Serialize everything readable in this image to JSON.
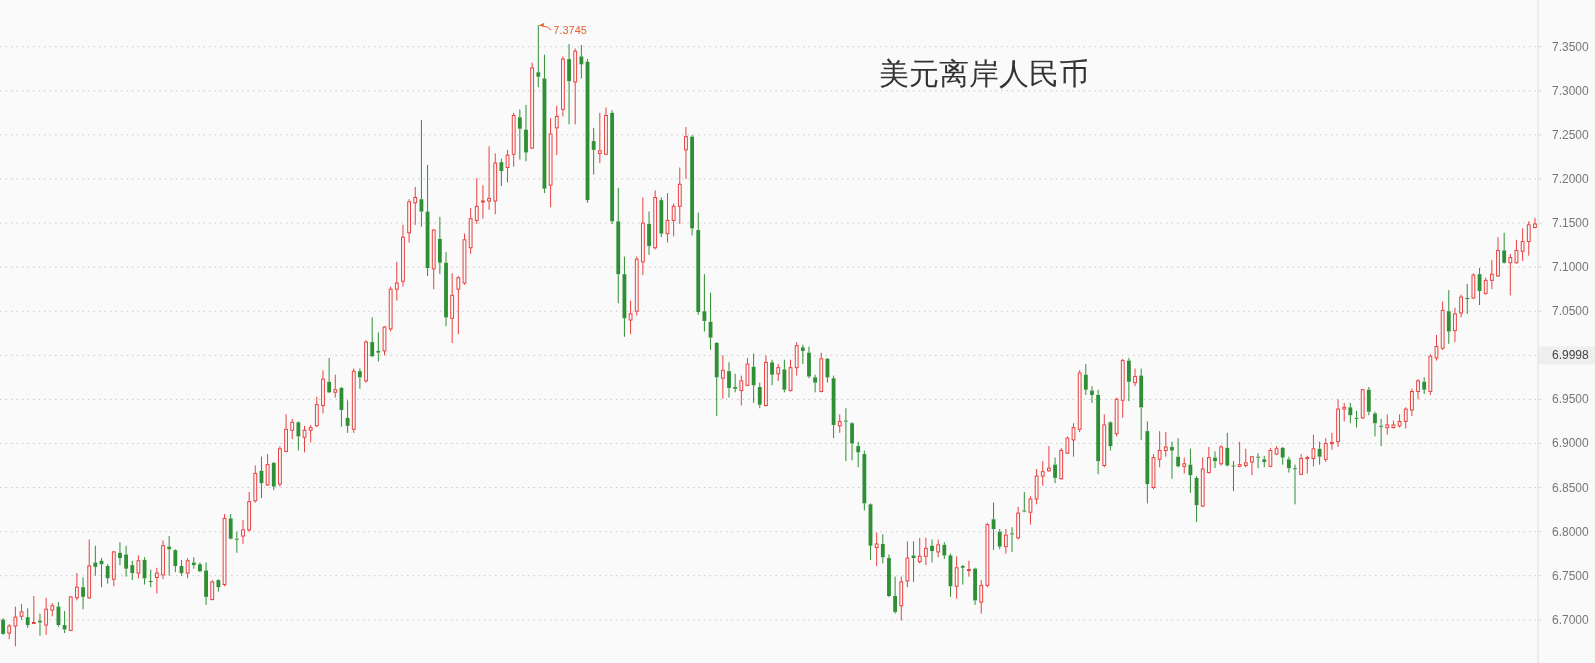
{
  "chart_data": {
    "type": "candlestick",
    "title": "美元离岸人民币",
    "categories": [
      null,
      null,
      null,
      null,
      null,
      null,
      null,
      null,
      null,
      null,
      null,
      null,
      null,
      null,
      null,
      null,
      null,
      null,
      null,
      null,
      null,
      null,
      null,
      null,
      null,
      null,
      null,
      null,
      null,
      null,
      null,
      null,
      null,
      null,
      null,
      null,
      null,
      null,
      null,
      null,
      null,
      null,
      null,
      null,
      null,
      null,
      null,
      null,
      null,
      null,
      null,
      null,
      null,
      null,
      null,
      null,
      null,
      null,
      null,
      null,
      null,
      null,
      null,
      null,
      null,
      null,
      null,
      null,
      null,
      null,
      null,
      null,
      null,
      null,
      null,
      null,
      null,
      null,
      null,
      null,
      null,
      null,
      null,
      null,
      null,
      null,
      null,
      null,
      null,
      null,
      null,
      null,
      null,
      null,
      null,
      null,
      null,
      null,
      null,
      null,
      null,
      null,
      null,
      null,
      null,
      null,
      null,
      null,
      null,
      null,
      null,
      null,
      null,
      null,
      null,
      null,
      null,
      null,
      null,
      null,
      null,
      null,
      null,
      null,
      null,
      null,
      null,
      null,
      null,
      null,
      null,
      null,
      null,
      null,
      null,
      null,
      null,
      null,
      null,
      null,
      null,
      null,
      null,
      null,
      null,
      null,
      null,
      null,
      null,
      null,
      null,
      null,
      null,
      null,
      null,
      null,
      null,
      null,
      null,
      null,
      null,
      null,
      null,
      null,
      null,
      null,
      null,
      null,
      null,
      null,
      null,
      null,
      null,
      null,
      null,
      null,
      null,
      null,
      null,
      null,
      null,
      null,
      null,
      null,
      null,
      null,
      null,
      null,
      null,
      null,
      null,
      null,
      null,
      null,
      null,
      null,
      null,
      null,
      null,
      null,
      null,
      null,
      null,
      null,
      null,
      null,
      null,
      null,
      null,
      null,
      null,
      null,
      null,
      null,
      null,
      null,
      null,
      null,
      null,
      null,
      null,
      null,
      null,
      null,
      null,
      null,
      null,
      null,
      null,
      null,
      null,
      null,
      null,
      null,
      null,
      null,
      null,
      null,
      null,
      null,
      null,
      null,
      null,
      null,
      null,
      null,
      null,
      null,
      null,
      null
    ],
    "ohlc": [
      [
        6.7,
        6.702,
        6.683,
        6.684
      ],
      [
        6.685,
        6.695,
        6.678,
        6.693
      ],
      [
        6.693,
        6.715,
        6.67,
        6.703
      ],
      [
        6.704,
        6.718,
        6.7,
        6.709
      ],
      [
        6.703,
        6.713,
        6.691,
        6.694
      ],
      [
        6.696,
        6.727,
        6.695,
        6.697
      ],
      [
        6.699,
        6.707,
        6.682,
        6.697
      ],
      [
        6.694,
        6.725,
        6.683,
        6.712
      ],
      [
        6.711,
        6.719,
        6.704,
        6.716
      ],
      [
        6.715,
        6.72,
        6.692,
        6.694
      ],
      [
        6.694,
        6.71,
        6.685,
        6.689
      ],
      [
        6.688,
        6.727,
        6.687,
        6.726
      ],
      [
        6.725,
        6.753,
        6.722,
        6.737
      ],
      [
        6.737,
        6.748,
        6.712,
        6.726
      ],
      [
        6.725,
        6.791,
        6.724,
        6.761
      ],
      [
        6.765,
        6.784,
        6.75,
        6.76
      ],
      [
        6.767,
        6.77,
        6.737,
        6.763
      ],
      [
        6.761,
        6.763,
        6.741,
        6.747
      ],
      [
        6.746,
        6.778,
        6.738,
        6.777
      ],
      [
        6.776,
        6.788,
        6.762,
        6.77
      ],
      [
        6.774,
        6.784,
        6.749,
        6.758
      ],
      [
        6.762,
        6.767,
        6.745,
        6.753
      ],
      [
        6.753,
        6.773,
        6.747,
        6.767
      ],
      [
        6.768,
        6.771,
        6.74,
        6.747
      ],
      [
        6.744,
        6.757,
        6.737,
        6.743
      ],
      [
        6.748,
        6.759,
        6.73,
        6.753
      ],
      [
        6.751,
        6.79,
        6.746,
        6.784
      ],
      [
        6.783,
        6.795,
        6.75,
        6.78
      ],
      [
        6.779,
        6.78,
        6.754,
        6.761
      ],
      [
        6.761,
        6.768,
        6.75,
        6.753
      ],
      [
        6.753,
        6.77,
        6.747,
        6.767
      ],
      [
        6.765,
        6.771,
        6.758,
        6.762
      ],
      [
        6.763,
        6.765,
        6.754,
        6.755
      ],
      [
        6.756,
        6.765,
        6.717,
        6.726
      ],
      [
        6.723,
        6.745,
        6.722,
        6.743
      ],
      [
        6.745,
        6.746,
        6.732,
        6.737
      ],
      [
        6.74,
        6.82,
        6.738,
        6.815
      ],
      [
        6.815,
        6.82,
        6.791,
        6.792
      ],
      [
        6.792,
        6.8,
        6.776,
        6.791
      ],
      [
        6.795,
        6.813,
        6.786,
        6.802
      ],
      [
        6.802,
        6.845,
        6.8,
        6.834
      ],
      [
        6.835,
        6.875,
        6.833,
        6.866
      ],
      [
        6.869,
        6.885,
        6.838,
        6.855
      ],
      [
        6.853,
        6.888,
        6.852,
        6.876
      ],
      [
        6.878,
        6.879,
        6.847,
        6.851
      ],
      [
        6.854,
        6.897,
        6.851,
        6.894
      ],
      [
        6.891,
        6.933,
        6.89,
        6.916
      ],
      [
        6.915,
        6.928,
        6.905,
        6.924
      ],
      [
        6.924,
        6.925,
        6.892,
        6.908
      ],
      [
        6.907,
        6.92,
        6.89,
        6.915
      ],
      [
        6.915,
        6.921,
        6.901,
        6.918
      ],
      [
        6.92,
        6.953,
        6.919,
        6.944
      ],
      [
        6.943,
        6.983,
        6.934,
        6.973
      ],
      [
        6.97,
        6.997,
        6.957,
        6.958
      ],
      [
        6.958,
        6.978,
        6.952,
        6.961
      ],
      [
        6.963,
        6.964,
        6.919,
        6.938
      ],
      [
        6.929,
        6.949,
        6.912,
        6.92
      ],
      [
        6.916,
        6.985,
        6.912,
        6.982
      ],
      [
        6.982,
        6.985,
        6.962,
        6.975
      ],
      [
        6.971,
        7.017,
        6.969,
        7.015
      ],
      [
        7.015,
        7.043,
        6.998,
        6.999
      ],
      [
        7.005,
        7.026,
        6.993,
        7.003
      ],
      [
        7.005,
        7.033,
        7.0,
        7.032
      ],
      [
        7.03,
        7.078,
        7.027,
        7.075
      ],
      [
        7.075,
        7.106,
        7.062,
        7.082
      ],
      [
        7.084,
        7.148,
        7.078,
        7.134
      ],
      [
        7.139,
        7.177,
        7.128,
        7.174
      ],
      [
        7.173,
        7.191,
        7.148,
        7.179
      ],
      [
        7.177,
        7.267,
        7.146,
        7.163
      ],
      [
        7.163,
        7.216,
        7.09,
        7.099
      ],
      [
        7.098,
        7.143,
        7.075,
        7.142
      ],
      [
        7.132,
        7.157,
        7.092,
        7.105
      ],
      [
        7.105,
        7.117,
        7.033,
        7.043
      ],
      [
        7.042,
        7.093,
        7.014,
        7.068
      ],
      [
        7.075,
        7.09,
        7.024,
        7.088
      ],
      [
        7.082,
        7.138,
        7.08,
        7.131
      ],
      [
        7.122,
        7.167,
        7.115,
        7.155
      ],
      [
        7.153,
        7.201,
        7.149,
        7.169
      ],
      [
        7.174,
        7.193,
        7.155,
        7.175
      ],
      [
        7.175,
        7.237,
        7.165,
        7.178
      ],
      [
        7.175,
        7.229,
        7.16,
        7.218
      ],
      [
        7.219,
        7.223,
        7.192,
        7.209
      ],
      [
        7.213,
        7.233,
        7.196,
        7.227
      ],
      [
        7.228,
        7.275,
        7.214,
        7.272
      ],
      [
        7.27,
        7.279,
        7.222,
        7.257
      ],
      [
        7.256,
        7.284,
        7.22,
        7.23
      ],
      [
        7.235,
        7.332,
        7.234,
        7.326
      ],
      [
        7.321,
        7.3745,
        7.304,
        7.316
      ],
      [
        7.314,
        7.341,
        7.184,
        7.189
      ],
      [
        7.193,
        7.269,
        7.168,
        7.251
      ],
      [
        7.258,
        7.283,
        7.227,
        7.271
      ],
      [
        7.279,
        7.339,
        7.271,
        7.336
      ],
      [
        7.336,
        7.353,
        7.262,
        7.311
      ],
      [
        7.31,
        7.348,
        7.262,
        7.345
      ],
      [
        7.339,
        7.352,
        7.314,
        7.33
      ],
      [
        7.333,
        7.336,
        7.173,
        7.176
      ],
      [
        7.243,
        7.258,
        7.205,
        7.233
      ],
      [
        7.229,
        7.275,
        7.218,
        7.232
      ],
      [
        7.228,
        7.281,
        7.227,
        7.272
      ],
      [
        7.275,
        7.278,
        7.149,
        7.152
      ],
      [
        7.152,
        7.19,
        7.059,
        7.092
      ],
      [
        7.092,
        7.112,
        7.021,
        7.042
      ],
      [
        7.04,
        7.062,
        7.024,
        7.047
      ],
      [
        7.05,
        7.112,
        7.045,
        7.109
      ],
      [
        7.106,
        7.179,
        7.091,
        7.15
      ],
      [
        7.149,
        7.163,
        7.114,
        7.124
      ],
      [
        7.122,
        7.187,
        7.12,
        7.179
      ],
      [
        7.176,
        7.179,
        7.134,
        7.138
      ],
      [
        7.138,
        7.184,
        7.128,
        7.153
      ],
      [
        7.153,
        7.172,
        7.135,
        7.169
      ],
      [
        7.169,
        7.213,
        7.149,
        7.194
      ],
      [
        7.233,
        7.259,
        7.2,
        7.248
      ],
      [
        7.248,
        7.25,
        7.136,
        7.144
      ],
      [
        7.142,
        7.162,
        7.046,
        7.049
      ],
      [
        7.05,
        7.092,
        7.027,
        7.039
      ],
      [
        7.038,
        7.071,
        7.006,
        7.02
      ],
      [
        7.014,
        7.015,
        6.931,
        6.975
      ],
      [
        6.974,
        7.0,
        6.951,
        6.983
      ],
      [
        6.982,
        6.992,
        6.952,
        6.963
      ],
      [
        6.964,
        6.979,
        6.958,
        6.962
      ],
      [
        6.96,
        6.977,
        6.943,
        6.971
      ],
      [
        6.966,
        6.997,
        6.965,
        6.99
      ],
      [
        6.987,
        7.002,
        6.946,
        6.966
      ],
      [
        6.964,
        6.969,
        6.94,
        6.944
      ],
      [
        6.943,
        7.0,
        6.942,
        6.992
      ],
      [
        6.992,
        6.995,
        6.966,
        6.978
      ],
      [
        6.979,
        6.99,
        6.971,
        6.986
      ],
      [
        6.984,
        6.995,
        6.958,
        6.961
      ],
      [
        6.96,
        6.995,
        6.959,
        6.986
      ],
      [
        6.986,
        7.015,
        6.977,
        7.011
      ],
      [
        7.009,
        7.012,
        6.99,
        7.005
      ],
      [
        7.003,
        7.01,
        6.974,
        6.976
      ],
      [
        6.975,
        6.978,
        6.958,
        6.969
      ],
      [
        6.959,
        7.003,
        6.958,
        6.996
      ],
      [
        6.996,
        6.997,
        6.969,
        6.975
      ],
      [
        6.974,
        6.977,
        6.906,
        6.921
      ],
      [
        6.92,
        6.933,
        6.912,
        6.925
      ],
      [
        6.926,
        6.94,
        6.88,
        6.925
      ],
      [
        6.923,
        6.924,
        6.881,
        6.9
      ],
      [
        6.897,
        6.902,
        6.873,
        6.89
      ],
      [
        6.888,
        6.892,
        6.824,
        6.832
      ],
      [
        6.831,
        6.832,
        6.768,
        6.784
      ],
      [
        6.782,
        6.799,
        6.761,
        6.786
      ],
      [
        6.786,
        6.797,
        6.764,
        6.771
      ],
      [
        6.77,
        6.774,
        6.726,
        6.727
      ],
      [
        6.727,
        6.749,
        6.707,
        6.709
      ],
      [
        6.716,
        6.749,
        6.699,
        6.743
      ],
      [
        6.744,
        6.789,
        6.737,
        6.77
      ],
      [
        6.773,
        6.789,
        6.743,
        6.77
      ],
      [
        6.766,
        6.793,
        6.764,
        6.772
      ],
      [
        6.772,
        6.793,
        6.762,
        6.781
      ],
      [
        6.784,
        6.791,
        6.765,
        6.778
      ],
      [
        6.777,
        6.791,
        6.771,
        6.785
      ],
      [
        6.785,
        6.788,
        6.769,
        6.773
      ],
      [
        6.773,
        6.775,
        6.726,
        6.738
      ],
      [
        6.738,
        6.772,
        6.724,
        6.759
      ],
      [
        6.761,
        6.762,
        6.74,
        6.759
      ],
      [
        6.756,
        6.767,
        6.749,
        6.757
      ],
      [
        6.758,
        6.759,
        6.717,
        6.722
      ],
      [
        6.72,
        6.745,
        6.707,
        6.739
      ],
      [
        6.739,
        6.81,
        6.737,
        6.808
      ],
      [
        6.814,
        6.833,
        6.779,
        6.803
      ],
      [
        6.8,
        6.803,
        6.78,
        6.783
      ],
      [
        6.783,
        6.803,
        6.775,
        6.796
      ],
      [
        6.798,
        6.805,
        6.777,
        6.797
      ],
      [
        6.793,
        6.828,
        6.791,
        6.821
      ],
      [
        6.824,
        6.845,
        6.822,
        6.823
      ],
      [
        6.822,
        6.84,
        6.808,
        6.837
      ],
      [
        6.837,
        6.871,
        6.831,
        6.863
      ],
      [
        6.863,
        6.88,
        6.852,
        6.868
      ],
      [
        6.869,
        6.897,
        6.868,
        6.872
      ],
      [
        6.876,
        6.884,
        6.855,
        6.861
      ],
      [
        6.86,
        6.895,
        6.859,
        6.892
      ],
      [
        6.889,
        6.908,
        6.888,
        6.906
      ],
      [
        6.904,
        6.923,
        6.885,
        6.918
      ],
      [
        6.916,
        6.983,
        6.913,
        6.98
      ],
      [
        6.978,
        6.99,
        6.955,
        6.961
      ],
      [
        6.96,
        6.965,
        6.946,
        6.955
      ],
      [
        6.955,
        6.961,
        6.865,
        6.88
      ],
      [
        6.875,
        6.933,
        6.873,
        6.921
      ],
      [
        6.924,
        6.925,
        6.892,
        6.897
      ],
      [
        6.911,
        6.952,
        6.908,
        6.95
      ],
      [
        6.949,
        6.996,
        6.929,
        6.994
      ],
      [
        6.994,
        6.997,
        6.948,
        6.97
      ],
      [
        6.969,
        6.985,
        6.965,
        6.976
      ],
      [
        6.977,
        6.985,
        6.904,
        6.941
      ],
      [
        6.914,
        6.925,
        6.832,
        6.854
      ],
      [
        6.85,
        6.888,
        6.848,
        6.884
      ],
      [
        6.882,
        6.914,
        6.873,
        6.892
      ],
      [
        6.892,
        6.913,
        6.885,
        6.896
      ],
      [
        6.896,
        6.902,
        6.86,
        6.892
      ],
      [
        6.885,
        6.906,
        6.873,
        6.874
      ],
      [
        6.874,
        6.884,
        6.866,
        6.877
      ],
      [
        6.876,
        6.894,
        6.844,
        6.864
      ],
      [
        6.861,
        6.863,
        6.811,
        6.83
      ],
      [
        6.829,
        6.884,
        6.828,
        6.871
      ],
      [
        6.867,
        6.896,
        6.866,
        6.884
      ],
      [
        6.884,
        6.891,
        6.872,
        6.88
      ],
      [
        6.877,
        6.898,
        6.875,
        6.896
      ],
      [
        6.895,
        6.912,
        6.874,
        6.875
      ],
      [
        6.875,
        6.88,
        6.846,
        6.874
      ],
      [
        6.874,
        6.902,
        6.873,
        6.876
      ],
      [
        6.875,
        6.894,
        6.873,
        6.878
      ],
      [
        6.879,
        6.886,
        6.864,
        6.885
      ],
      [
        6.885,
        6.889,
        6.872,
        6.884
      ],
      [
        6.882,
        6.886,
        6.873,
        6.879
      ],
      [
        6.874,
        6.895,
        6.873,
        6.892
      ],
      [
        6.888,
        6.897,
        6.887,
        6.894
      ],
      [
        6.895,
        6.896,
        6.876,
        6.884
      ],
      [
        6.882,
        6.885,
        6.867,
        6.872
      ],
      [
        6.872,
        6.876,
        6.831,
        6.871
      ],
      [
        6.865,
        6.888,
        6.864,
        6.883
      ],
      [
        6.883,
        6.886,
        6.866,
        6.884
      ],
      [
        6.883,
        6.91,
        6.874,
        6.894
      ],
      [
        6.894,
        6.902,
        6.876,
        6.885
      ],
      [
        6.882,
        6.906,
        6.879,
        6.9
      ],
      [
        6.9,
        6.912,
        6.893,
        6.901
      ],
      [
        6.902,
        6.95,
        6.896,
        6.939
      ],
      [
        6.939,
        6.946,
        6.925,
        6.941
      ],
      [
        6.941,
        6.946,
        6.923,
        6.932
      ],
      [
        6.929,
        6.937,
        6.918,
        6.928
      ],
      [
        6.929,
        6.962,
        6.928,
        6.961
      ],
      [
        6.961,
        6.964,
        6.932,
        6.936
      ],
      [
        6.934,
        6.936,
        6.908,
        6.923
      ],
      [
        6.92,
        6.928,
        6.897,
        6.919
      ],
      [
        6.918,
        6.933,
        6.91,
        6.921
      ],
      [
        6.918,
        6.926,
        6.917,
        6.921
      ],
      [
        6.92,
        6.933,
        6.918,
        6.925
      ],
      [
        6.925,
        6.941,
        6.917,
        6.939
      ],
      [
        6.938,
        6.962,
        6.931,
        6.959
      ],
      [
        6.959,
        6.973,
        6.95,
        6.971
      ],
      [
        6.97,
        6.975,
        6.956,
        6.961
      ],
      [
        6.959,
        7.001,
        6.955,
        6.999
      ],
      [
        6.997,
        7.023,
        6.994,
        7.01
      ],
      [
        7.008,
        7.061,
        7.006,
        7.051
      ],
      [
        7.05,
        7.074,
        7.013,
        7.027
      ],
      [
        7.028,
        7.054,
        7.015,
        7.047
      ],
      [
        7.048,
        7.069,
        7.043,
        7.066
      ],
      [
        7.065,
        7.081,
        7.047,
        7.064
      ],
      [
        7.065,
        7.093,
        7.064,
        7.091
      ],
      [
        7.092,
        7.099,
        7.057,
        7.073
      ],
      [
        7.07,
        7.088,
        7.069,
        7.085
      ],
      [
        7.085,
        7.108,
        7.075,
        7.092
      ],
      [
        7.09,
        7.134,
        7.089,
        7.119
      ],
      [
        7.119,
        7.139,
        7.104,
        7.105
      ],
      [
        7.105,
        7.115,
        7.068,
        7.111
      ],
      [
        7.105,
        7.131,
        7.104,
        7.119
      ],
      [
        7.118,
        7.144,
        7.107,
        7.129
      ],
      [
        7.129,
        7.152,
        7.113,
        7.148
      ],
      [
        7.145,
        7.156,
        7.144,
        7.149
      ]
    ],
    "colors": [
      "#2f8f35",
      "#e8413f",
      "#e8413f",
      "#e8413f",
      "#2f8f35",
      "#e8413f",
      "#2f8f35",
      "#e8413f",
      "#e8413f",
      "#2f8f35",
      "#2f8f35",
      "#e8413f",
      "#e8413f",
      "#2f8f35",
      "#e8413f",
      "#2f8f35",
      "#2f8f35",
      "#2f8f35",
      "#e8413f",
      "#2f8f35",
      "#2f8f35",
      "#2f8f35",
      "#e8413f",
      "#2f8f35",
      "#2f8f35",
      "#e8413f",
      "#e8413f",
      "#2f8f35",
      "#2f8f35",
      "#2f8f35",
      "#e8413f",
      "#2f8f35",
      "#2f8f35",
      "#2f8f35",
      "#e8413f",
      "#2f8f35",
      "#e8413f",
      "#2f8f35",
      "#2f8f35",
      "#e8413f",
      "#e8413f",
      "#e8413f",
      "#2f8f35",
      "#e8413f",
      "#2f8f35",
      "#e8413f",
      "#e8413f",
      "#e8413f",
      "#2f8f35",
      "#e8413f",
      "#e8413f",
      "#e8413f",
      "#e8413f",
      "#2f8f35",
      "#e8413f",
      "#2f8f35",
      "#2f8f35",
      "#e8413f",
      "#2f8f35",
      "#e8413f",
      "#2f8f35",
      "#2f8f35",
      "#e8413f",
      "#e8413f",
      "#e8413f",
      "#e8413f",
      "#e8413f",
      "#e8413f",
      "#2f8f35",
      "#2f8f35",
      "#e8413f",
      "#2f8f35",
      "#2f8f35",
      "#e8413f",
      "#e8413f",
      "#e8413f",
      "#e8413f",
      "#e8413f",
      "#e8413f",
      "#e8413f",
      "#e8413f",
      "#2f8f35",
      "#e8413f",
      "#e8413f",
      "#2f8f35",
      "#2f8f35",
      "#e8413f",
      "#2f8f35",
      "#2f8f35",
      "#e8413f",
      "#e8413f",
      "#e8413f",
      "#2f8f35",
      "#e8413f",
      "#2f8f35",
      "#2f8f35",
      "#2f8f35",
      "#e8413f",
      "#e8413f",
      "#2f8f35",
      "#2f8f35",
      "#2f8f35",
      "#e8413f",
      "#e8413f",
      "#e8413f",
      "#2f8f35",
      "#e8413f",
      "#2f8f35",
      "#e8413f",
      "#e8413f",
      "#e8413f",
      "#e8413f",
      "#2f8f35",
      "#2f8f35",
      "#2f8f35",
      "#2f8f35",
      "#2f8f35",
      "#e8413f",
      "#2f8f35",
      "#2f8f35",
      "#e8413f",
      "#e8413f",
      "#2f8f35",
      "#2f8f35",
      "#e8413f",
      "#2f8f35",
      "#e8413f",
      "#2f8f35",
      "#e8413f",
      "#e8413f",
      "#2f8f35",
      "#2f8f35",
      "#2f8f35",
      "#e8413f",
      "#2f8f35",
      "#2f8f35",
      "#e8413f",
      "#2f8f35",
      "#2f8f35",
      "#2f8f35",
      "#2f8f35",
      "#2f8f35",
      "#e8413f",
      "#2f8f35",
      "#2f8f35",
      "#2f8f35",
      "#e8413f",
      "#e8413f",
      "#2f8f35",
      "#e8413f",
      "#e8413f",
      "#2f8f35",
      "#e8413f",
      "#2f8f35",
      "#2f8f35",
      "#e8413f",
      "#2f8f35",
      "#e8413f",
      "#2f8f35",
      "#e8413f",
      "#e8413f",
      "#2f8f35",
      "#2f8f35",
      "#e8413f",
      "#2f8f35",
      "#e8413f",
      "#2f8f35",
      "#e8413f",
      "#e8413f",
      "#e8413f",
      "#e8413f",
      "#2f8f35",
      "#e8413f",
      "#e8413f",
      "#e8413f",
      "#e8413f",
      "#2f8f35",
      "#2f8f35",
      "#2f8f35",
      "#e8413f",
      "#2f8f35",
      "#e8413f",
      "#e8413f",
      "#2f8f35",
      "#e8413f",
      "#2f8f35",
      "#2f8f35",
      "#e8413f",
      "#e8413f",
      "#e8413f",
      "#2f8f35",
      "#2f8f35",
      "#e8413f",
      "#2f8f35",
      "#2f8f35",
      "#e8413f",
      "#e8413f",
      "#2f8f35",
      "#e8413f",
      "#2f8f35",
      "#2f8f35",
      "#e8413f",
      "#e8413f",
      "#e8413f",
      "#2f8f35",
      "#2f8f35",
      "#e8413f",
      "#e8413f",
      "#2f8f35",
      "#2f8f35",
      "#2f8f35",
      "#e8413f",
      "#e8413f",
      "#e8413f",
      "#2f8f35",
      "#e8413f",
      "#e8413f",
      "#e8413f",
      "#e8413f",
      "#2f8f35",
      "#2f8f35",
      "#e8413f",
      "#2f8f35",
      "#2f8f35",
      "#2f8f35",
      "#e8413f",
      "#e8413f",
      "#e8413f",
      "#e8413f",
      "#e8413f",
      "#e8413f",
      "#2f8f35",
      "#e8413f",
      "#e8413f",
      "#e8413f",
      "#2f8f35",
      "#e8413f",
      "#e8413f",
      "#2f8f35",
      "#e8413f",
      "#2f8f35",
      "#e8413f",
      "#e8413f",
      "#e8413f",
      "#2f8f35",
      "#e8413f",
      "#e8413f",
      "#e8413f",
      "#e8413f",
      "#e8413f"
    ],
    "ylim": [
      6.651,
      7.403
    ],
    "yticks": [
      {
        "value": 6.7,
        "label": "6.7000"
      },
      {
        "value": 6.75,
        "label": "6.7500"
      },
      {
        "value": 6.8,
        "label": "6.8000"
      },
      {
        "value": 6.85,
        "label": "6.8500"
      },
      {
        "value": 6.9,
        "label": "6.9000"
      },
      {
        "value": 6.95,
        "label": "6.9500"
      },
      {
        "value": 7.0,
        "label": null
      },
      {
        "value": 7.05,
        "label": "7.0500"
      },
      {
        "value": 7.1,
        "label": "7.1000"
      },
      {
        "value": 7.15,
        "label": "7.1500"
      },
      {
        "value": 7.2,
        "label": "7.2000"
      },
      {
        "value": 7.25,
        "label": "7.2500"
      },
      {
        "value": 7.3,
        "label": "7.3000"
      },
      {
        "value": 7.35,
        "label": "7.3500"
      }
    ],
    "grid": "y",
    "annotations": [
      "7.3745",
      "6.9998"
    ]
  }
}
